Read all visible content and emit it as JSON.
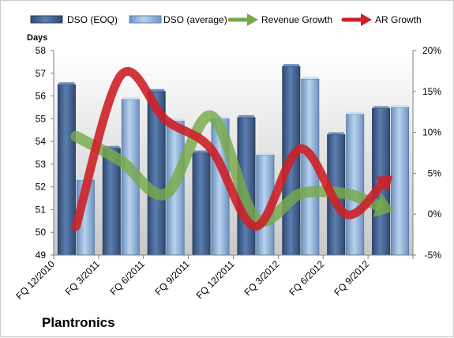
{
  "company": "Plantronics",
  "chart_data": {
    "type": "bar",
    "title": "",
    "ylabel": "Days",
    "ylabel_right": "",
    "categories": [
      "FQ 12/2010",
      "FQ 3/2011",
      "FQ 6/2011",
      "FQ 9/2011",
      "FQ 12/2011",
      "FQ 3/2012",
      "FQ 6/2012",
      "FQ 9/2012"
    ],
    "ylim": [
      49,
      58
    ],
    "y_ticks": [
      "49",
      "50",
      "51",
      "52",
      "53",
      "54",
      "55",
      "56",
      "57",
      "58"
    ],
    "y2lim": [
      -5,
      20
    ],
    "y2_ticks": [
      "-5%",
      "0%",
      "5%",
      "10%",
      "15%",
      "20%"
    ],
    "grid": false,
    "legend_position": "top",
    "series": [
      {
        "name": "DSO (EOQ)",
        "kind": "bar",
        "axis": "left",
        "color": "#4a6a9a",
        "values": [
          56.5,
          53.7,
          56.2,
          53.5,
          55.05,
          57.3,
          54.3,
          55.45
        ]
      },
      {
        "name": "DSO (average)",
        "kind": "bar",
        "axis": "left",
        "color": "#94b6d9",
        "values": [
          52.3,
          55.85,
          54.9,
          55.0,
          53.4,
          56.75,
          55.2,
          55.5
        ]
      },
      {
        "name": "Revenue Growth",
        "kind": "line-arrow",
        "axis": "right",
        "unit": "%",
        "color": "#77a94a",
        "values": [
          9.5,
          6.5,
          2.5,
          12.0,
          -0.5,
          2.5,
          2.5,
          0.5
        ]
      },
      {
        "name": "AR Growth",
        "kind": "line-arrow",
        "axis": "right",
        "unit": "%",
        "color": "#cc2127",
        "values": [
          -1.5,
          17.0,
          11.5,
          8.0,
          -1.5,
          8.0,
          0.0,
          4.5
        ]
      }
    ]
  }
}
